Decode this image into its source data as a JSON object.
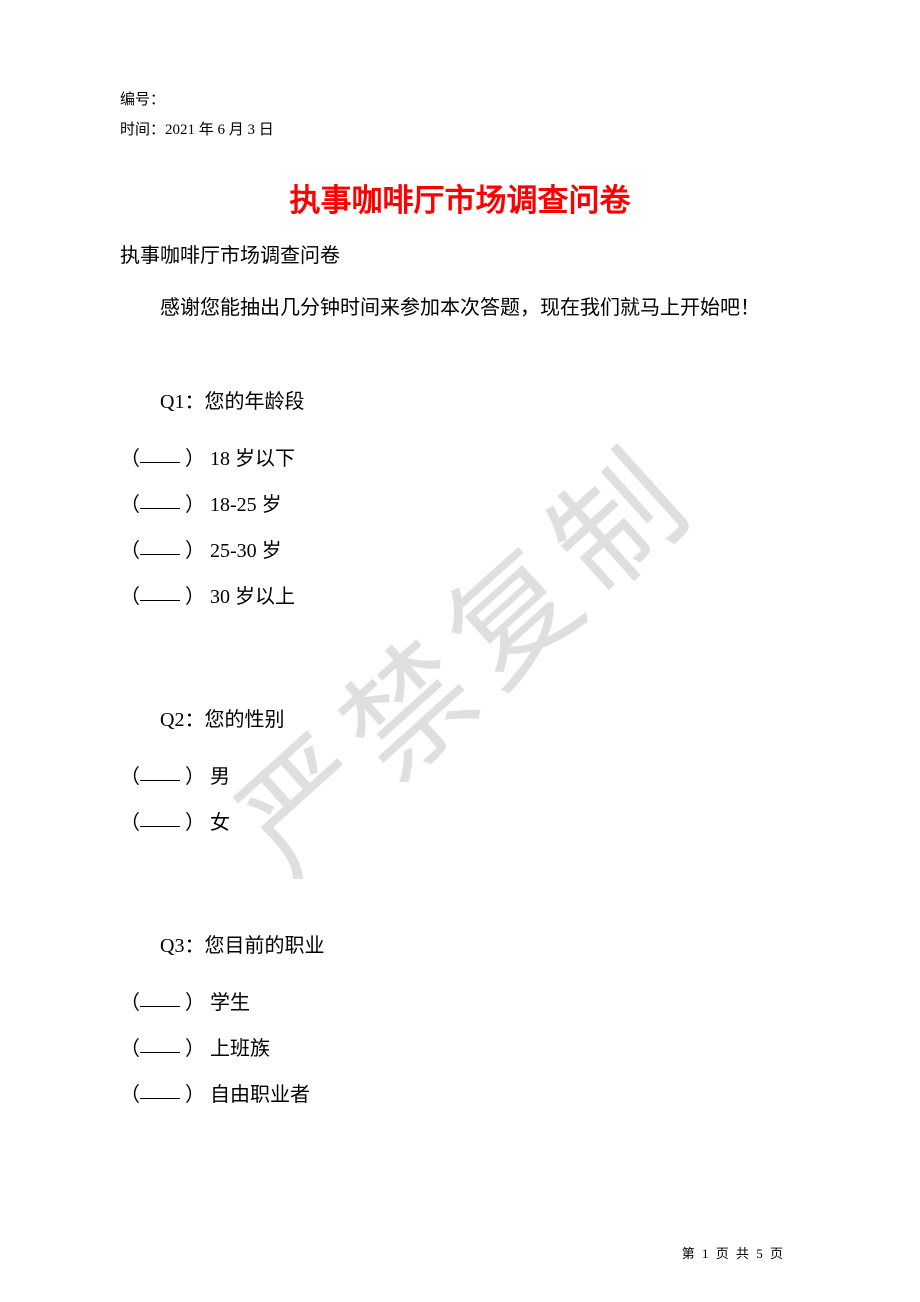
{
  "header": {
    "serial_label": "编号：",
    "date_label": "时间：",
    "date_value": "2021 年 6 月 3 日"
  },
  "title": "执事咖啡厅市场调查问卷",
  "subtitle": "执事咖啡厅市场调查问卷",
  "intro": "感谢您能抽出几分钟时间来参加本次答题，现在我们就马上开始吧！",
  "watermark_text": "严禁复制",
  "questions": [
    {
      "id": "q1",
      "label": "Q1：您的年龄段",
      "options": [
        "18 岁以下",
        "18-25 岁",
        "25-30 岁",
        "30 岁以上"
      ]
    },
    {
      "id": "q2",
      "label": "Q2：您的性别",
      "options": [
        "男",
        "女"
      ]
    },
    {
      "id": "q3",
      "label": "Q3：您目前的职业",
      "options": [
        "学生",
        "上班族",
        "自由职业者"
      ]
    }
  ],
  "footer": {
    "page_text": "第 1 页 共 5 页"
  },
  "colors": {
    "title_color": "#ff0000",
    "text_color": "#000000",
    "background": "#ffffff",
    "watermark_color": "rgba(140,140,140,0.28)"
  },
  "typography": {
    "title_fontsize": 31,
    "body_fontsize": 20,
    "header_fontsize": 15,
    "footer_fontsize": 13
  }
}
